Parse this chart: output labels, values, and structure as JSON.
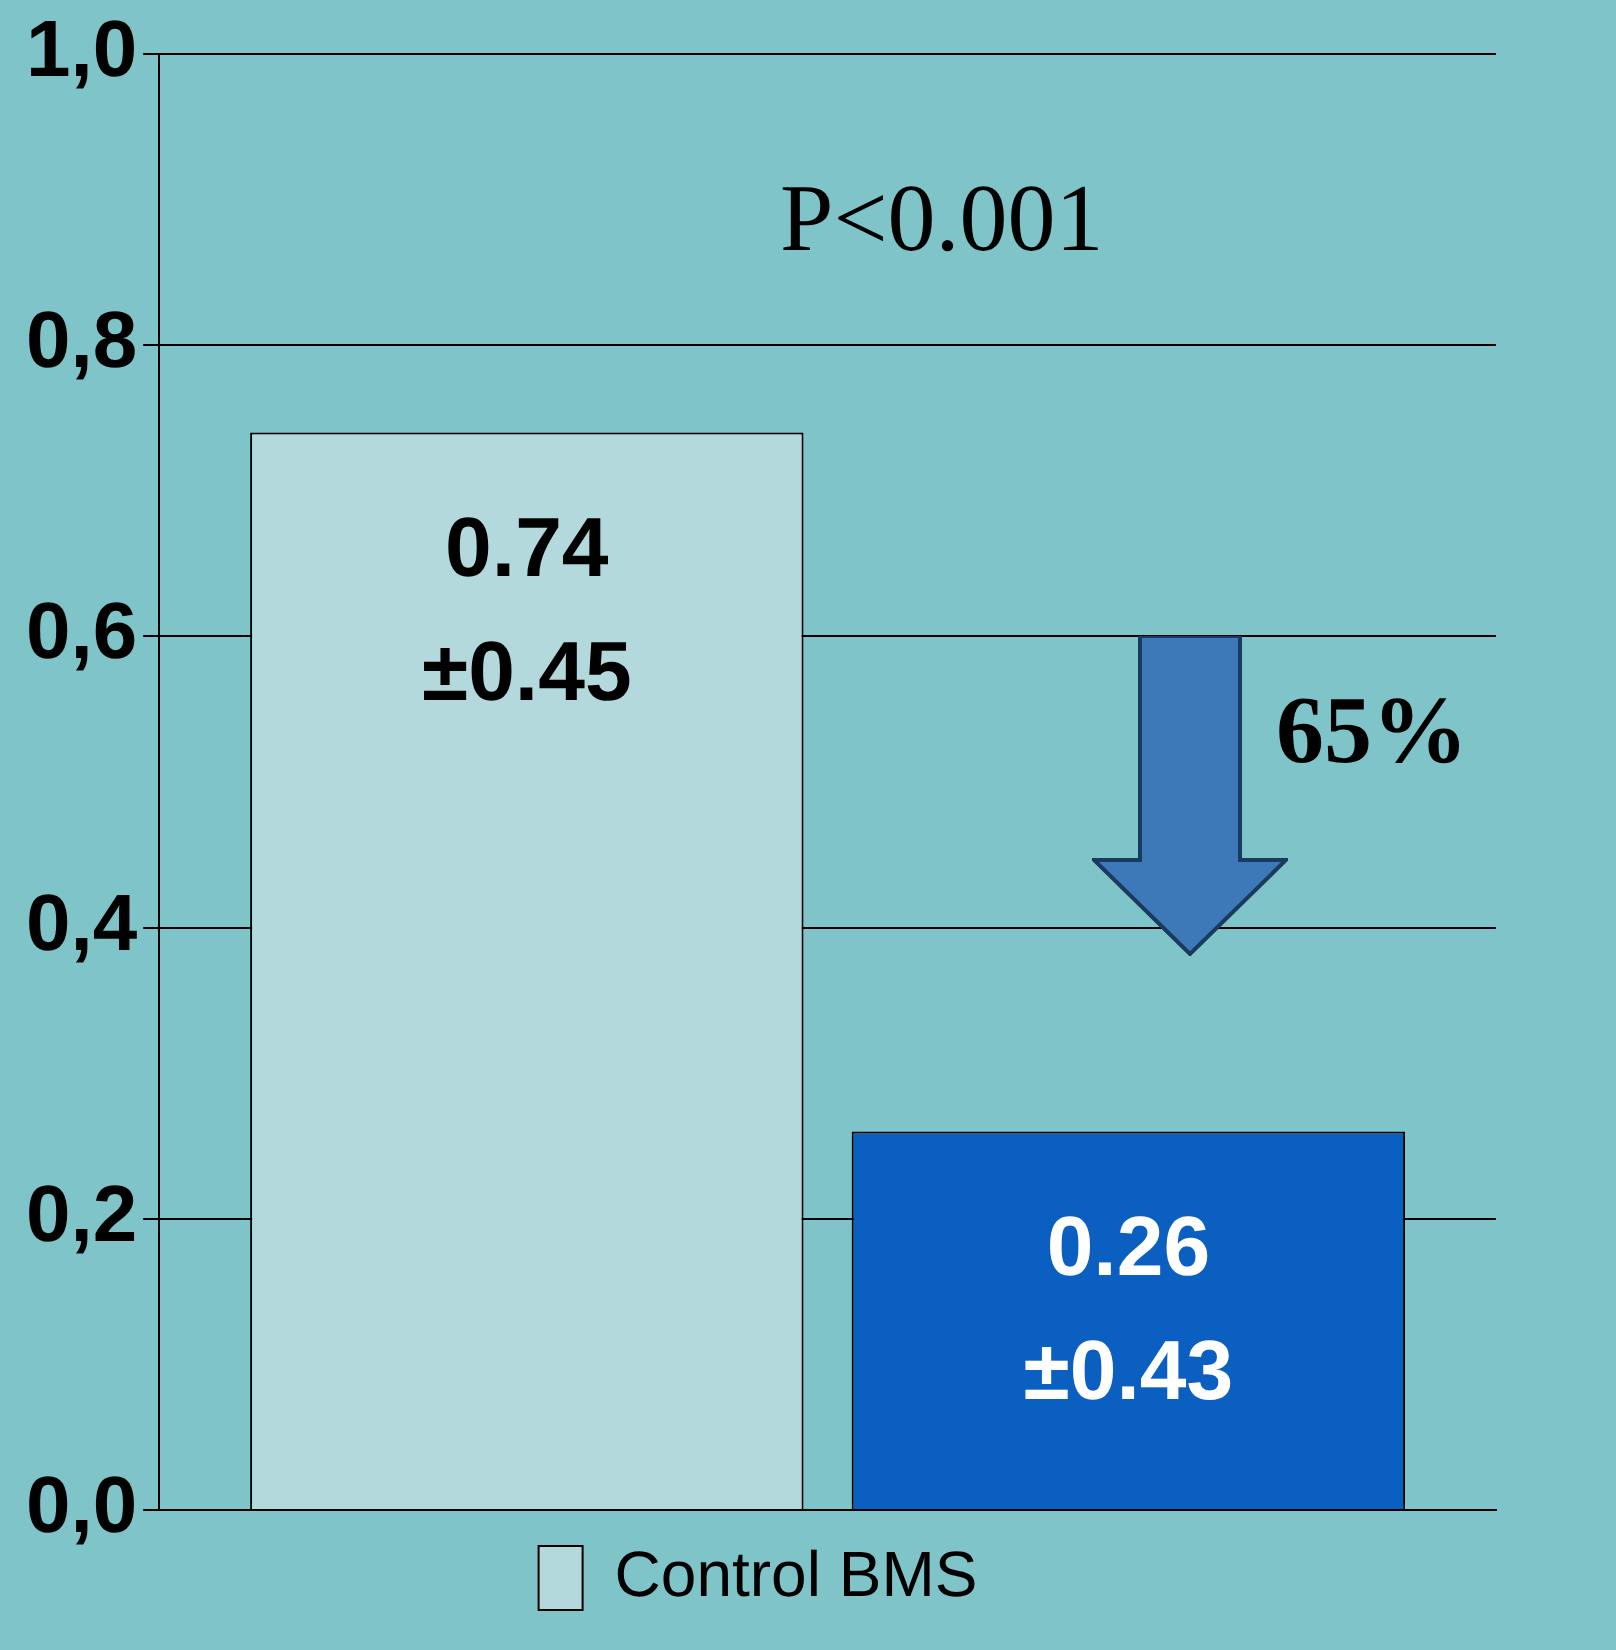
{
  "chart_data": {
    "type": "bar",
    "categories": [
      null
    ],
    "series": [
      {
        "name": "Control BMS",
        "color": "#b4d9dc",
        "values": [
          0.74
        ],
        "value_labels": [
          "0.74 ±0.45"
        ]
      },
      {
        "color": "#0a5fc0",
        "values": [
          0.26
        ],
        "value_labels": [
          "0.26 ±0.43"
        ]
      }
    ],
    "ylim": [
      0,
      1
    ],
    "yticks": [
      {
        "value": 0,
        "label": "0,0"
      },
      {
        "value": 0.2,
        "label": "0,2"
      },
      {
        "value": 0.4,
        "label": "0,4"
      },
      {
        "value": 0.6,
        "label": "0,6"
      },
      {
        "value": 0.8,
        "label": "0,8"
      },
      {
        "value": 1,
        "label": "1,0"
      }
    ],
    "grid": "y",
    "legend": "bottom",
    "annotations": [
      "P<0.001",
      "65%"
    ]
  }
}
